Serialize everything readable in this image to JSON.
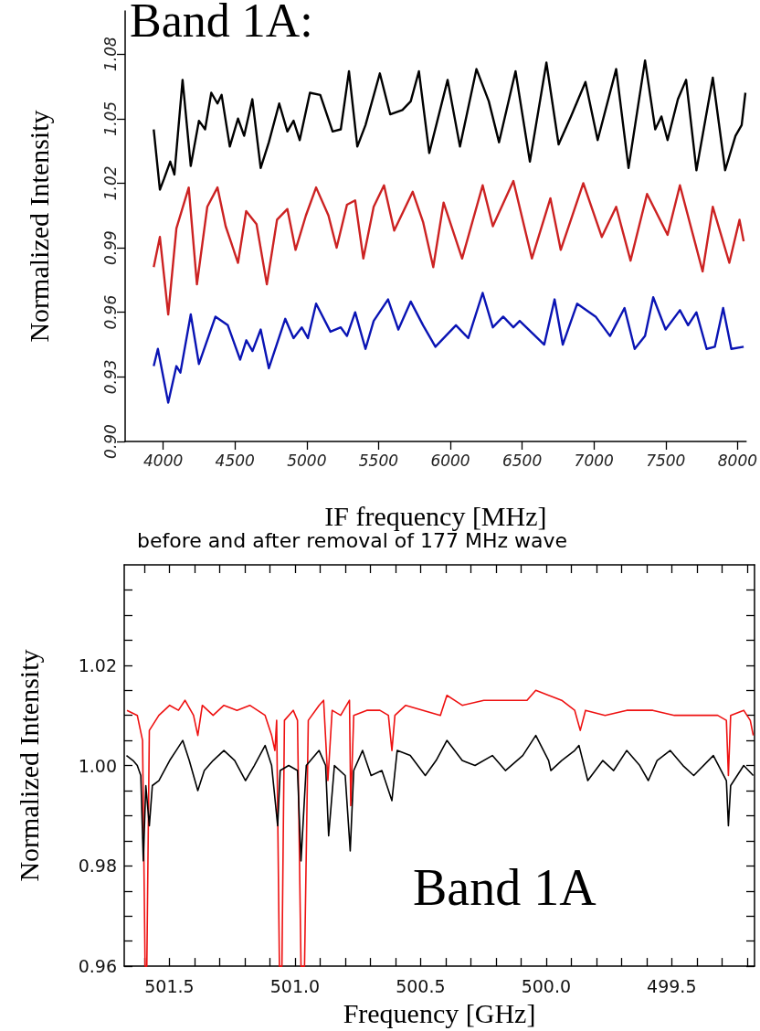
{
  "chart_data": [
    {
      "type": "line",
      "title": "Band 1A:",
      "xlabel": "IF frequency [MHz]",
      "ylabel": "Normalized Intensity",
      "marker": "none",
      "grid": false,
      "xlim": [
        3735,
        8060
      ],
      "ylim": [
        0.9,
        1.1
      ],
      "xticks": [
        4000,
        4500,
        5000,
        5500,
        6000,
        6500,
        7000,
        7500,
        8000
      ],
      "yticks": [
        {
          "value": 0.9,
          "label": "0.90"
        },
        0.93,
        0.96,
        0.99,
        1.02,
        1.05,
        1.08
      ],
      "series": [
        {
          "color": "#000000",
          "x": [
            3934,
            3977,
            4006,
            4049,
            4078,
            4135,
            4192,
            4249,
            4292,
            4335,
            4378,
            4407,
            4464,
            4521,
            4564,
            4621,
            4679,
            4736,
            4808,
            4865,
            4908,
            4951,
            5022,
            5094,
            5180,
            5237,
            5294,
            5352,
            5409,
            5509,
            5581,
            5666,
            5724,
            5781,
            5853,
            5981,
            6067,
            6182,
            6268,
            6339,
            6454,
            6554,
            6669,
            6754,
            6840,
            6941,
            7026,
            7155,
            7241,
            7356,
            7427,
            7470,
            7513,
            7585,
            7642,
            7714,
            7828,
            7914,
            7986,
            8029,
            8055
          ],
          "values": [
            1.045,
            1.017,
            1.022,
            1.03,
            1.024,
            1.068,
            1.028,
            1.049,
            1.045,
            1.062,
            1.057,
            1.061,
            1.037,
            1.05,
            1.042,
            1.059,
            1.027,
            1.039,
            1.057,
            1.044,
            1.049,
            1.04,
            1.062,
            1.061,
            1.044,
            1.045,
            1.072,
            1.037,
            1.047,
            1.071,
            1.052,
            1.054,
            1.058,
            1.072,
            1.034,
            1.068,
            1.037,
            1.073,
            1.058,
            1.039,
            1.072,
            1.03,
            1.076,
            1.038,
            1.051,
            1.067,
            1.04,
            1.073,
            1.027,
            1.077,
            1.045,
            1.051,
            1.04,
            1.059,
            1.068,
            1.026,
            1.069,
            1.026,
            1.042,
            1.047,
            1.062
          ]
        },
        {
          "color": "#cc2222",
          "x": [
            3934,
            3977,
            4035,
            4092,
            4178,
            4235,
            4307,
            4378,
            4435,
            4521,
            4578,
            4650,
            4722,
            4793,
            4865,
            4922,
            4994,
            5065,
            5151,
            5208,
            5280,
            5337,
            5394,
            5466,
            5538,
            5609,
            5738,
            5810,
            5881,
            5953,
            6082,
            6225,
            6296,
            6439,
            6568,
            6697,
            6769,
            6926,
            7055,
            7155,
            7255,
            7370,
            7513,
            7599,
            7757,
            7828,
            7943,
            8014,
            8043
          ],
          "values": [
            0.981,
            0.995,
            0.959,
            0.999,
            1.018,
            0.973,
            1.009,
            1.018,
            1.0,
            0.983,
            1.007,
            1.001,
            0.973,
            1.003,
            1.008,
            0.989,
            1.005,
            1.018,
            1.005,
            0.99,
            1.01,
            1.012,
            0.985,
            1.009,
            1.019,
            0.998,
            1.016,
            1.002,
            0.981,
            1.011,
            0.985,
            1.019,
            1.0,
            1.021,
            0.985,
            1.013,
            0.989,
            1.02,
            0.995,
            1.009,
            0.984,
            1.015,
            0.996,
            1.019,
            0.979,
            1.009,
            0.983,
            1.003,
            0.993
          ]
        },
        {
          "color": "#0a14b4",
          "x": [
            3934,
            3963,
            4035,
            4092,
            4120,
            4192,
            4249,
            4364,
            4450,
            4536,
            4579,
            4622,
            4679,
            4736,
            4850,
            4908,
            4965,
            5008,
            5065,
            5165,
            5237,
            5280,
            5337,
            5409,
            5466,
            5566,
            5638,
            5724,
            5810,
            5896,
            6039,
            6125,
            6225,
            6296,
            6368,
            6439,
            6483,
            6654,
            6726,
            6783,
            6883,
            7012,
            7112,
            7213,
            7284,
            7356,
            7413,
            7499,
            7599,
            7656,
            7714,
            7785,
            7842,
            7900,
            7957,
            8043
          ],
          "values": [
            0.935,
            0.943,
            0.918,
            0.935,
            0.932,
            0.959,
            0.936,
            0.958,
            0.954,
            0.938,
            0.947,
            0.942,
            0.952,
            0.934,
            0.957,
            0.948,
            0.953,
            0.948,
            0.964,
            0.951,
            0.953,
            0.949,
            0.96,
            0.943,
            0.956,
            0.966,
            0.952,
            0.965,
            0.954,
            0.944,
            0.954,
            0.948,
            0.969,
            0.953,
            0.958,
            0.953,
            0.956,
            0.945,
            0.966,
            0.945,
            0.964,
            0.958,
            0.949,
            0.962,
            0.943,
            0.949,
            0.967,
            0.952,
            0.961,
            0.954,
            0.96,
            0.943,
            0.944,
            0.962,
            0.943,
            0.944
          ]
        }
      ]
    },
    {
      "type": "line",
      "title": "before and after removal of 177 MHz wave",
      "xlabel": "Frequency [GHz]",
      "ylabel": "Normalized Intensity",
      "annotations": [
        "Band 1A"
      ],
      "marker": "none",
      "grid": false,
      "xlim": [
        501.68,
        499.17
      ],
      "ylim": [
        0.96,
        1.04
      ],
      "xticks": [
        {
          "value": 501.6,
          "label": null
        },
        {
          "value": 501.5,
          "label": "501.5"
        },
        {
          "value": 501.4,
          "label": null
        },
        {
          "value": 501.3,
          "label": null
        },
        {
          "value": 501.2,
          "label": null
        },
        {
          "value": 501.1,
          "label": null
        },
        {
          "value": 501,
          "label": "501.0"
        },
        {
          "value": 500.9,
          "label": null
        },
        {
          "value": 500.8,
          "label": null
        },
        {
          "value": 500.7,
          "label": null
        },
        {
          "value": 500.6,
          "label": null
        },
        {
          "value": 500.5,
          "label": "500.5"
        },
        {
          "value": 500.4,
          "label": null
        },
        {
          "value": 500.3,
          "label": null
        },
        {
          "value": 500.2,
          "label": null
        },
        {
          "value": 500.1,
          "label": null
        },
        {
          "value": 500,
          "label": "500.0"
        },
        {
          "value": 499.9,
          "label": null
        },
        {
          "value": 499.8,
          "label": null
        },
        {
          "value": 499.7,
          "label": null
        },
        {
          "value": 499.6,
          "label": null
        },
        {
          "value": 499.5,
          "label": "499.5"
        },
        {
          "value": 499.4,
          "label": null
        },
        {
          "value": 499.3,
          "label": null
        },
        {
          "value": 499.2,
          "label": null
        }
      ],
      "yticks": [
        0.96,
        {
          "value": 0.965,
          "label": null
        },
        {
          "value": 0.97,
          "label": null
        },
        {
          "value": 0.975,
          "label": null
        },
        0.98,
        {
          "value": 0.985,
          "label": null
        },
        {
          "value": 0.99,
          "label": null
        },
        {
          "value": 0.995,
          "label": null
        },
        {
          "value": 1,
          "label": "1.00"
        },
        {
          "value": 1.005,
          "label": null
        },
        {
          "value": 1.01,
          "label": null
        },
        {
          "value": 1.015,
          "label": null
        },
        1.02,
        {
          "value": 1.025,
          "label": null
        },
        {
          "value": 1.03,
          "label": null
        },
        {
          "value": 1.035,
          "label": null
        }
      ],
      "series": [
        {
          "color": "#ee1111",
          "x": [
            501.669,
            501.628,
            501.607,
            501.597,
            501.59,
            501.58,
            501.542,
            501.499,
            501.464,
            501.438,
            501.404,
            501.387,
            501.369,
            501.326,
            501.283,
            501.231,
            501.18,
            501.119,
            501.093,
            501.08,
            501.073,
            501.062,
            501.052,
            501.042,
            501.007,
            500.99,
            500.976,
            500.962,
            500.947,
            500.904,
            500.886,
            500.869,
            500.852,
            500.818,
            500.783,
            500.778,
            500.766,
            500.714,
            500.662,
            500.628,
            500.614,
            500.602,
            500.559,
            500.49,
            500.421,
            500.395,
            500.334,
            500.248,
            500.162,
            500.076,
            500.041,
            499.99,
            499.938,
            499.886,
            499.864,
            499.843,
            499.765,
            499.679,
            499.575,
            499.489,
            499.386,
            499.317,
            499.282,
            499.274,
            499.265,
            499.213,
            499.187,
            499.175
          ],
          "values": [
            1.011,
            1.01,
            1.005,
            0.96,
            0.96,
            1.007,
            1.01,
            1.012,
            1.011,
            1.013,
            1.01,
            1.006,
            1.012,
            1.01,
            1.012,
            1.011,
            1.012,
            1.01,
            1.006,
            1.003,
            1.009,
            0.96,
            0.96,
            1.009,
            1.011,
            1.009,
            0.96,
            0.96,
            1.009,
            1.012,
            1.013,
            0.997,
            1.011,
            1.01,
            1.013,
            0.992,
            1.01,
            1.011,
            1.011,
            1.01,
            1.003,
            1.01,
            1.012,
            1.011,
            1.01,
            1.014,
            1.012,
            1.013,
            1.013,
            1.013,
            1.015,
            1.014,
            1.013,
            1.011,
            1.007,
            1.011,
            1.01,
            1.011,
            1.011,
            1.01,
            1.01,
            1.01,
            1.009,
            0.998,
            1.01,
            1.011,
            1.009,
            1.006
          ]
        },
        {
          "color": "#000000",
          "x": [
            501.671,
            501.645,
            501.628,
            501.614,
            501.604,
            501.594,
            501.58,
            501.568,
            501.542,
            501.499,
            501.473,
            501.447,
            501.421,
            501.387,
            501.361,
            501.326,
            501.283,
            501.24,
            501.197,
            501.162,
            501.119,
            501.093,
            501.083,
            501.069,
            501.059,
            501.025,
            500.99,
            500.976,
            500.955,
            500.904,
            500.878,
            500.866,
            500.843,
            500.8,
            500.78,
            500.766,
            500.731,
            500.697,
            500.654,
            500.614,
            500.593,
            500.541,
            500.481,
            500.438,
            500.395,
            500.334,
            500.283,
            500.214,
            500.162,
            500.093,
            500.041,
            499.99,
            499.981,
            499.938,
            499.886,
            499.869,
            499.834,
            499.774,
            499.731,
            499.679,
            499.627,
            499.593,
            499.558,
            499.506,
            499.455,
            499.412,
            499.334,
            499.282,
            499.274,
            499.265,
            499.213,
            499.175
          ],
          "values": [
            1.002,
            1.001,
            1.0,
            0.998,
            0.981,
            0.996,
            0.988,
            0.996,
            0.997,
            1.001,
            1.003,
            1.005,
            1.001,
            0.995,
            0.999,
            1.001,
            1.003,
            1.001,
            0.997,
            1.0,
            1.004,
            1.0,
            0.995,
            0.988,
            0.999,
            1.0,
            0.999,
            0.981,
            1.0,
            1.003,
            1.0,
            0.986,
            1.0,
            0.998,
            0.983,
            0.999,
            1.003,
            0.998,
            0.999,
            0.993,
            1.003,
            1.002,
            0.998,
            1.001,
            1.005,
            1.001,
            1.0,
            1.002,
            0.999,
            1.002,
            1.006,
            1.001,
            0.999,
            1.001,
            1.003,
            1.004,
            0.997,
            1.001,
            0.999,
            1.003,
            1.0,
            0.997,
            1.001,
            1.003,
            1.0,
            0.998,
            1.002,
            0.997,
            0.988,
            0.996,
            1.0,
            0.998
          ]
        }
      ]
    }
  ]
}
